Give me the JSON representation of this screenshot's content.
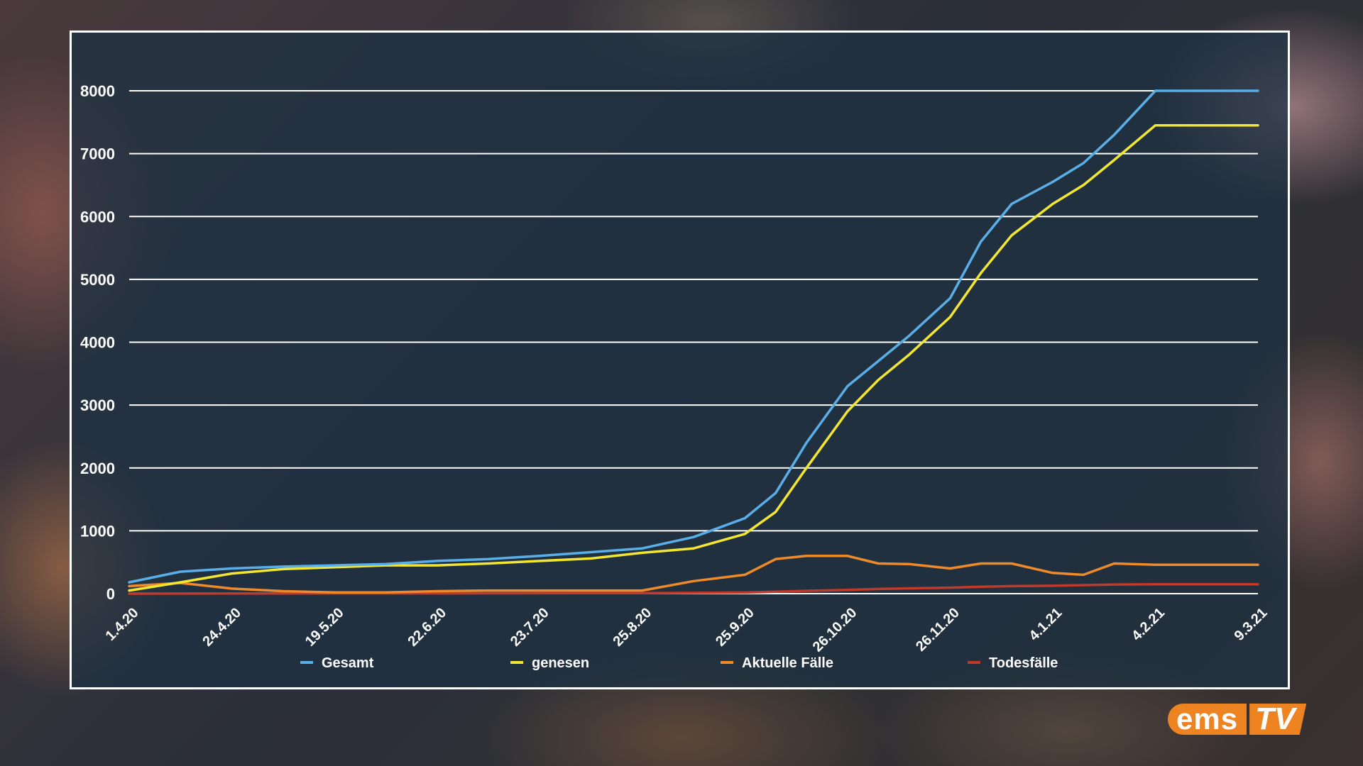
{
  "logo": {
    "text_main": "ems",
    "text_accent": "TV",
    "color": "#ee8322"
  },
  "chart_data": {
    "type": "line",
    "title": "",
    "xlabel": "",
    "ylabel": "",
    "ylim": [
      0,
      8000
    ],
    "y_ticks": [
      0,
      1000,
      2000,
      3000,
      4000,
      5000,
      6000,
      7000,
      8000
    ],
    "x_tick_labels": [
      "1.4.20",
      "24.4.20",
      "19.5.20",
      "22.6.20",
      "23.7.20",
      "25.8.20",
      "25.9.20",
      "26.10.20",
      "26.11.20",
      "4.1.21",
      "4.2.21",
      "9.3.21"
    ],
    "grid": true,
    "legend_position": "bottom",
    "x": [
      0,
      0.5,
      1,
      1.5,
      2,
      2.5,
      3,
      3.5,
      4,
      4.5,
      5,
      5.5,
      6,
      6.3,
      6.6,
      7,
      7.3,
      7.6,
      8,
      8.3,
      8.6,
      9,
      9.3,
      9.6,
      10,
      10.3,
      10.6,
      11
    ],
    "series": [
      {
        "name": "Gesamt",
        "color": "#5aaee8",
        "values": [
          180,
          350,
          400,
          430,
          450,
          470,
          520,
          550,
          600,
          660,
          720,
          900,
          1200,
          1600,
          2400,
          3300,
          3700,
          4100,
          4700,
          5600,
          6200,
          6550,
          6850,
          7300,
          8000,
          8000,
          8000,
          8000
        ]
      },
      {
        "name": "genesen",
        "color": "#f2e631",
        "values": [
          50,
          180,
          320,
          390,
          420,
          450,
          450,
          480,
          520,
          560,
          650,
          720,
          950,
          1300,
          2000,
          2900,
          3400,
          3800,
          4400,
          5100,
          5700,
          6200,
          6500,
          6900,
          7450,
          7450,
          7450,
          7450
        ]
      },
      {
        "name": "Aktuelle Fälle",
        "color": "#ee8a2a",
        "values": [
          120,
          170,
          80,
          40,
          20,
          20,
          40,
          50,
          50,
          50,
          50,
          200,
          300,
          550,
          600,
          600,
          480,
          470,
          400,
          480,
          480,
          330,
          300,
          480,
          460,
          460,
          460,
          460
        ]
      },
      {
        "name": "Todesfälle",
        "color": "#c0392b",
        "values": [
          0,
          1,
          2,
          3,
          4,
          4,
          5,
          6,
          7,
          8,
          9,
          12,
          18,
          30,
          45,
          60,
          75,
          85,
          95,
          110,
          120,
          125,
          135,
          145,
          150,
          150,
          150,
          150
        ]
      }
    ]
  }
}
